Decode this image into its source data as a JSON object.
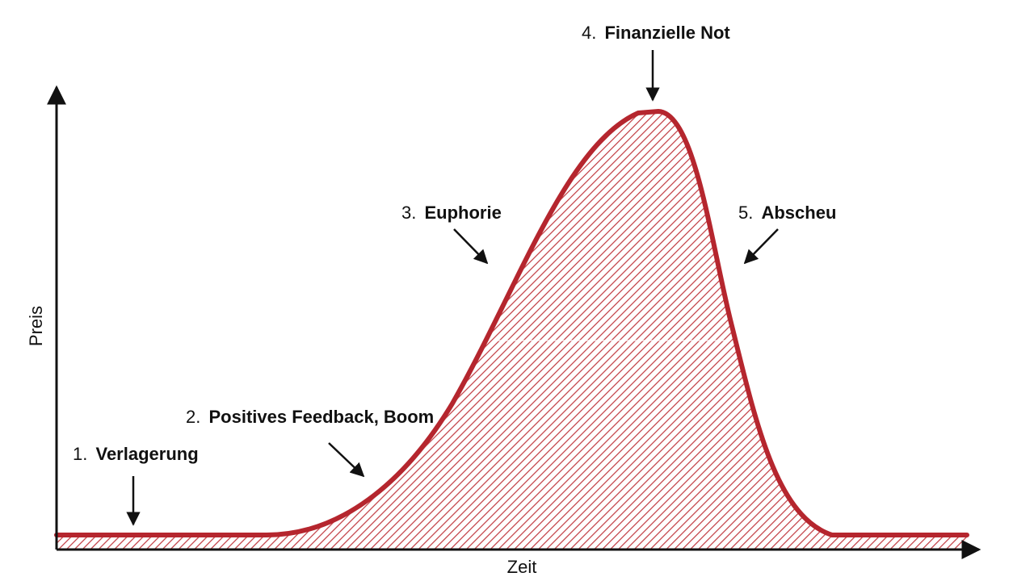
{
  "axes": {
    "x_label": "Zeit",
    "y_label": "Preis"
  },
  "stages": [
    {
      "number": "1.",
      "name": "Verlagerung"
    },
    {
      "number": "2.",
      "name": "Positives Feedback, Boom"
    },
    {
      "number": "3.",
      "name": "Euphorie"
    },
    {
      "number": "4.",
      "name": "Finanzielle Not"
    },
    {
      "number": "5.",
      "name": "Abscheu"
    }
  ],
  "colors": {
    "curve": "#b5262e",
    "hatch": "#c0393f",
    "axis": "#111111",
    "arrow": "#111111"
  }
}
